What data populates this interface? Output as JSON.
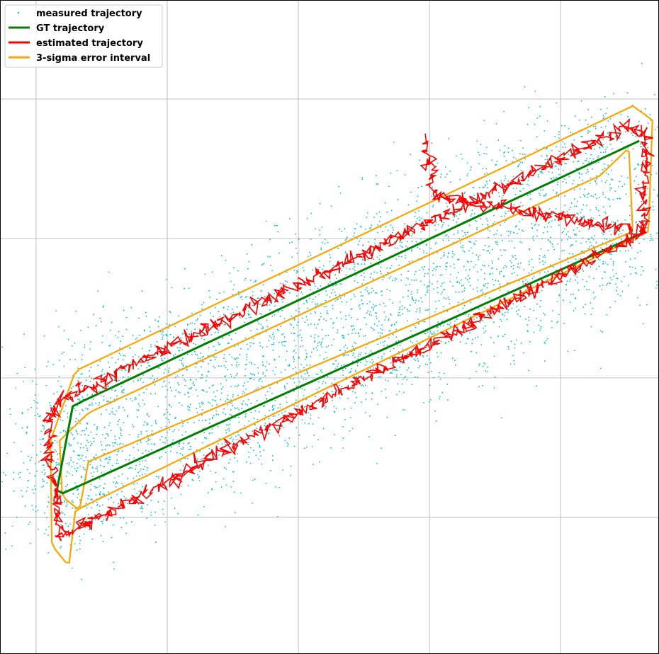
{
  "chart_data": {
    "type": "line",
    "title": "",
    "xlabel": "",
    "ylabel": "",
    "xlim": [
      -0.275,
      4.75
    ],
    "ylim": [
      -1.98,
      2.71
    ],
    "grid": true,
    "x_ticks": [
      0,
      1,
      2,
      3,
      4,
      5
    ],
    "y_ticks": [
      -1,
      0,
      1,
      2
    ],
    "legend": {
      "position": "top-left",
      "entries": [
        {
          "label": "measured trajectory",
          "color": "#00bfbf",
          "marker": "point"
        },
        {
          "label": "GT trajectory",
          "color": "#008000",
          "marker": "line"
        },
        {
          "label": "estimated trajectory",
          "color": "#ff0000",
          "marker": "line"
        },
        {
          "label": "3-sigma error interval",
          "color": "#ffa500",
          "marker": "line"
        }
      ]
    },
    "series": [
      {
        "name": "GT trajectory",
        "color": "#008000",
        "x": [
          4.6,
          4.65,
          4.63,
          0.15,
          0.18,
          0.28,
          4.5,
          4.6
        ],
        "y": [
          1.7,
          1.55,
          1.05,
          -0.4,
          -0.3,
          -0.2,
          1.75,
          1.7
        ],
        "path_x": [
          4.65,
          0.15,
          0.28,
          4.6
        ],
        "path_y": [
          1.05,
          -0.85,
          -0.2,
          1.7
        ]
      },
      {
        "name": "estimated trajectory",
        "color": "#ff0000",
        "path_x": [
          4.63,
          0.18,
          0.08,
          0.2,
          4.5,
          4.66,
          4.63,
          3.05,
          2.95
        ],
        "path_y": [
          1.05,
          -1.15,
          -0.3,
          -0.15,
          1.8,
          1.75,
          1.05,
          1.3,
          1.7
        ]
      },
      {
        "name": "3-sigma error interval",
        "color": "#ffa500",
        "outer_x": [
          4.55,
          4.7,
          4.67,
          0.3,
          0.25,
          0.12,
          0.11,
          0.3,
          4.55
        ],
        "outer_y": [
          1.95,
          1.85,
          1.05,
          -0.95,
          -1.35,
          -1.2,
          -0.45,
          0.05,
          1.95
        ],
        "inner_x": [
          4.3,
          4.52,
          4.55,
          0.4,
          0.33,
          0.2,
          0.18,
          0.4,
          4.3
        ],
        "inner_y": [
          1.45,
          1.65,
          1.05,
          -0.6,
          -0.95,
          -0.85,
          -0.45,
          -0.25,
          1.45
        ]
      },
      {
        "name": "measured trajectory",
        "color": "#00bfbf",
        "spread": 0.35,
        "count": 4200
      }
    ]
  }
}
